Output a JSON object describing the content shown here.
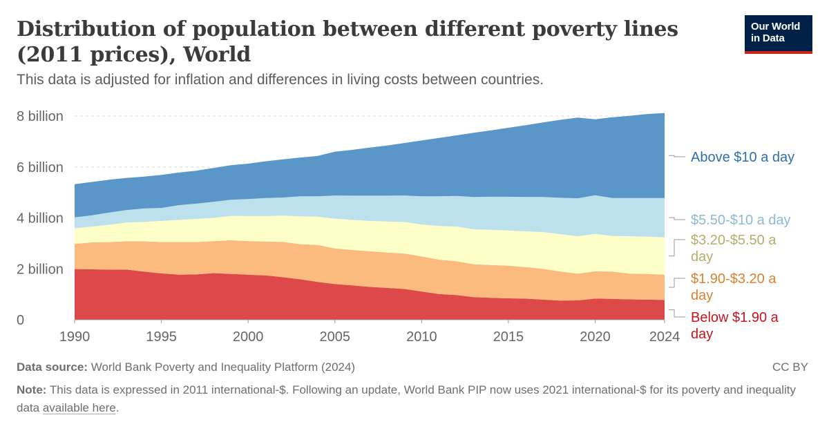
{
  "header": {
    "title": "Distribution of population between different poverty lines (2011 prices), World",
    "subtitle": "This data is adjusted for inflation and differences in living costs between countries."
  },
  "logo": {
    "line1": "Our World",
    "line2": "in Data"
  },
  "chart_data": {
    "type": "area",
    "stacked": true,
    "title": "Distribution of population between different poverty lines (2011 prices), World",
    "subtitle": "This data is adjusted for inflation and differences in living costs between countries.",
    "xlabel": "",
    "ylabel": "",
    "xlim": [
      1990,
      2024
    ],
    "ylim": [
      0,
      8
    ],
    "y_unit": "billion",
    "grid": "horizontal-dashed",
    "legend_placement": "right",
    "x_ticks": [
      {
        "value": 1990,
        "label": "1990"
      },
      {
        "value": 1995,
        "label": "1995"
      },
      {
        "value": 2000,
        "label": "2000"
      },
      {
        "value": 2005,
        "label": "2005"
      },
      {
        "value": 2010,
        "label": "2010"
      },
      {
        "value": 2015,
        "label": "2015"
      },
      {
        "value": 2020,
        "label": "2020"
      },
      {
        "value": 2024,
        "label": "2024"
      }
    ],
    "y_ticks": [
      {
        "value": 0,
        "label": "0"
      },
      {
        "value": 2,
        "label": "2 billion"
      },
      {
        "value": 4,
        "label": "4 billion"
      },
      {
        "value": 6,
        "label": "6 billion"
      },
      {
        "value": 8,
        "label": "8 billion"
      }
    ],
    "x": [
      1990,
      1991,
      1992,
      1993,
      1994,
      1995,
      1996,
      1997,
      1998,
      1999,
      2000,
      2001,
      2002,
      2003,
      2004,
      2005,
      2006,
      2007,
      2008,
      2009,
      2010,
      2011,
      2012,
      2013,
      2014,
      2015,
      2016,
      2017,
      2018,
      2019,
      2020,
      2021,
      2022,
      2023,
      2024
    ],
    "series": [
      {
        "name": "Below $1.90 a day",
        "color": "#dd4848",
        "label_color": "#c8141b",
        "values": [
          1.99,
          1.98,
          1.97,
          1.97,
          1.89,
          1.82,
          1.77,
          1.78,
          1.83,
          1.8,
          1.77,
          1.74,
          1.67,
          1.59,
          1.49,
          1.4,
          1.35,
          1.29,
          1.25,
          1.21,
          1.11,
          1.01,
          0.97,
          0.89,
          0.86,
          0.84,
          0.83,
          0.79,
          0.75,
          0.76,
          0.83,
          0.82,
          0.8,
          0.79,
          0.78
        ]
      },
      {
        "name": "$1.90-$3.20 a day",
        "color": "#fbbb7f",
        "label_color": "#dc8132",
        "values": [
          0.99,
          1.06,
          1.08,
          1.11,
          1.19,
          1.23,
          1.28,
          1.27,
          1.26,
          1.32,
          1.32,
          1.33,
          1.39,
          1.38,
          1.45,
          1.4,
          1.39,
          1.4,
          1.39,
          1.39,
          1.38,
          1.35,
          1.33,
          1.29,
          1.29,
          1.28,
          1.24,
          1.21,
          1.14,
          1.05,
          1.07,
          1.07,
          1.01,
          1.01,
          0.99
        ]
      },
      {
        "name": "$3.20-$5.50 a day",
        "color": "#ffffc9",
        "label_color": "#b5ae6c",
        "values": [
          0.61,
          0.62,
          0.68,
          0.74,
          0.76,
          0.83,
          0.87,
          0.91,
          0.91,
          0.96,
          0.98,
          1.0,
          1.03,
          1.09,
          1.11,
          1.17,
          1.18,
          1.19,
          1.22,
          1.24,
          1.25,
          1.32,
          1.36,
          1.37,
          1.38,
          1.38,
          1.4,
          1.44,
          1.47,
          1.47,
          1.47,
          1.4,
          1.47,
          1.46,
          1.47
        ]
      },
      {
        "name": "$5.50-$10 a day",
        "color": "#bce1ed",
        "label_color": "#8fb9d3",
        "values": [
          0.43,
          0.44,
          0.48,
          0.49,
          0.53,
          0.51,
          0.58,
          0.6,
          0.63,
          0.63,
          0.67,
          0.71,
          0.71,
          0.79,
          0.8,
          0.91,
          0.95,
          0.99,
          1.01,
          1.04,
          1.11,
          1.17,
          1.2,
          1.27,
          1.3,
          1.33,
          1.35,
          1.38,
          1.43,
          1.49,
          1.52,
          1.49,
          1.5,
          1.52,
          1.54
        ]
      },
      {
        "name": "Above $10 a day",
        "color": "#5a96c8",
        "label_color": "#2c6fac",
        "values": [
          1.3,
          1.31,
          1.29,
          1.26,
          1.25,
          1.3,
          1.28,
          1.29,
          1.33,
          1.36,
          1.39,
          1.44,
          1.5,
          1.52,
          1.58,
          1.72,
          1.8,
          1.89,
          1.97,
          2.06,
          2.19,
          2.29,
          2.38,
          2.52,
          2.61,
          2.71,
          2.82,
          2.93,
          3.06,
          3.17,
          2.98,
          3.17,
          3.23,
          3.3,
          3.34
        ]
      }
    ],
    "legend_labels": [
      {
        "series": "Above $10 a day",
        "lines": [
          "Above $10 a day"
        ]
      },
      {
        "series": "$5.50-$10 a day",
        "lines": [
          "$5.50-$10 a day"
        ]
      },
      {
        "series": "$3.20-$5.50 a day",
        "lines": [
          "$3.20-$5.50 a",
          "day"
        ]
      },
      {
        "series": "$1.90-$3.20 a day",
        "lines": [
          "$1.90-$3.20 a",
          "day"
        ]
      },
      {
        "series": "Below $1.90 a day",
        "lines": [
          "Below $1.90 a",
          "day"
        ]
      }
    ]
  },
  "footer": {
    "source_label": "Data source:",
    "source_text": "World Bank Poverty and Inequality Platform (2024)",
    "license": "CC BY",
    "note_label": "Note:",
    "note_text": "This data is expressed in 2011 international-$. Following an update, World Bank PIP now uses 2021 international-$ for its poverty and inequality data",
    "note_link": "available here",
    "note_end": "."
  }
}
